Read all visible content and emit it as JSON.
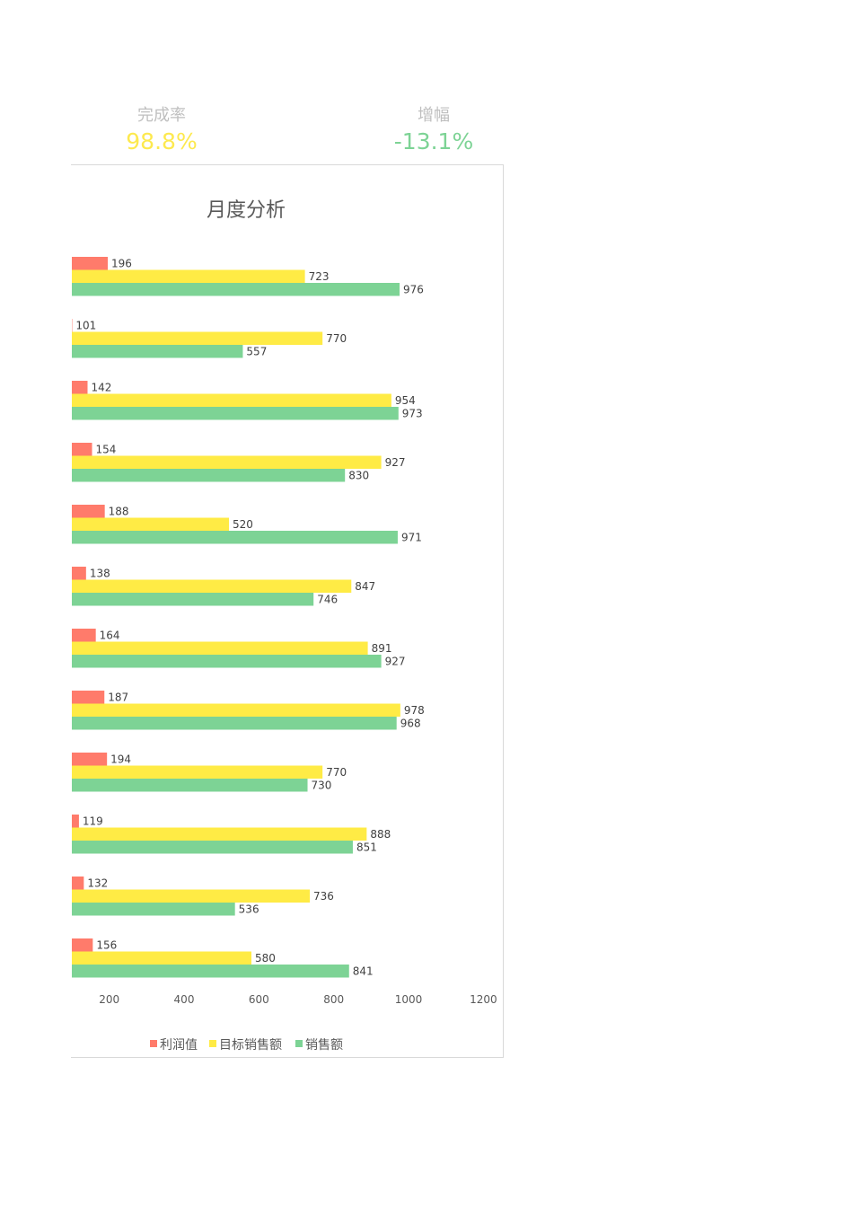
{
  "kpis": {
    "completion": {
      "label": "完成率",
      "value": "98.8%",
      "color": "#fde94f"
    },
    "growth": {
      "label": "增幅",
      "value": "-13.1%",
      "color": "#7dd395"
    }
  },
  "chart_data": {
    "type": "bar",
    "orientation": "horizontal",
    "title": "月度分析",
    "xlim": [
      100,
      1200
    ],
    "x_ticks": [
      "200",
      "400",
      "600",
      "800",
      "1000",
      "1200"
    ],
    "grid": false,
    "legend_position": "bottom",
    "series": [
      {
        "name": "利润值",
        "color": "#ff7b6b",
        "values": [
          196,
          101,
          142,
          154,
          188,
          138,
          164,
          187,
          194,
          119,
          132,
          156
        ]
      },
      {
        "name": "目标销售额",
        "color": "#ffeb45",
        "values": [
          723,
          770,
          954,
          927,
          520,
          847,
          891,
          978,
          770,
          888,
          736,
          580
        ]
      },
      {
        "name": "销售额",
        "color": "#7dd395",
        "values": [
          976,
          557,
          973,
          830,
          971,
          746,
          927,
          968,
          730,
          851,
          536,
          841
        ]
      }
    ]
  }
}
